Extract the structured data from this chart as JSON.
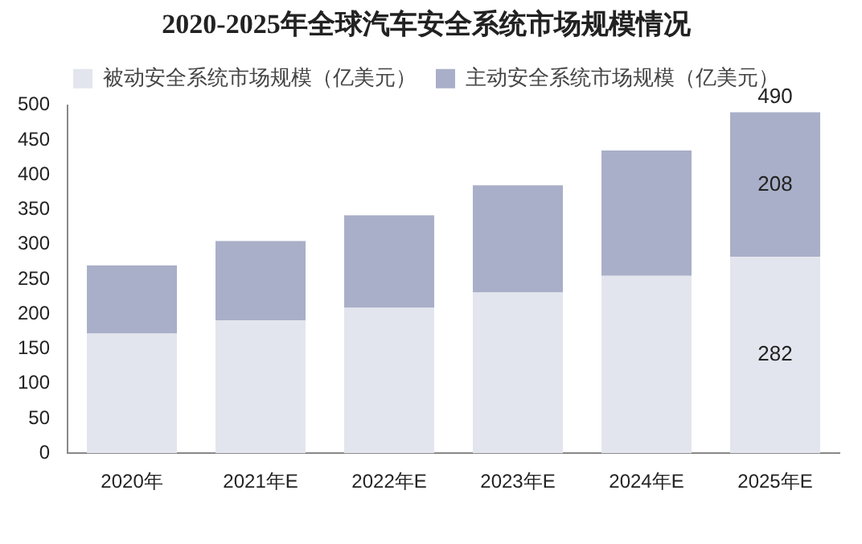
{
  "chart_data": {
    "type": "bar",
    "title": "2020-2025年全球汽车安全系统市场规模情况",
    "categories": [
      "2020年",
      "2021年E",
      "2022年E",
      "2023年E",
      "2024年E",
      "2025年E"
    ],
    "stacked": true,
    "series": [
      {
        "name": "被动安全系统市场规模（亿美元）",
        "color": "#e3e5ee",
        "values": [
          172,
          191,
          209,
          231,
          255,
          282
        ],
        "value_labels": [
          null,
          null,
          null,
          null,
          null,
          "282"
        ]
      },
      {
        "name": "主动安全系统市场规模（亿美元）",
        "color": "#a9afc8",
        "values": [
          98,
          114,
          133,
          154,
          180,
          208
        ],
        "value_labels": [
          null,
          null,
          null,
          null,
          null,
          "208"
        ]
      }
    ],
    "totals": [
      null,
      null,
      null,
      null,
      null,
      "490"
    ],
    "ylim": [
      0,
      500
    ],
    "yticks": [
      0,
      50,
      100,
      150,
      200,
      250,
      300,
      350,
      400,
      450,
      500
    ],
    "grid": false,
    "legend": "top"
  }
}
